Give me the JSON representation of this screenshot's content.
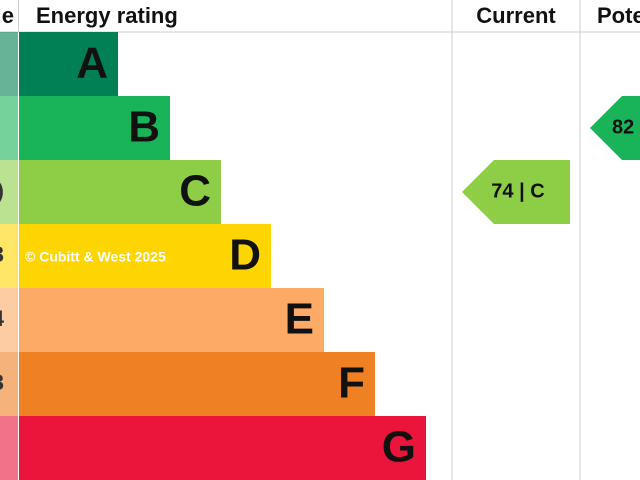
{
  "header": {
    "score": "e",
    "rating": "Energy rating",
    "current": "Current",
    "potential": "Pote"
  },
  "bands": [
    {
      "letter": "A",
      "color": "#008054"
    },
    {
      "letter": "B",
      "color": "#19b459"
    },
    {
      "letter": "C",
      "color": "#8dce46",
      "score": ")"
    },
    {
      "letter": "D",
      "color": "#ffd500",
      "score": "3"
    },
    {
      "letter": "E",
      "color": "#fcaa65",
      "score": "4"
    },
    {
      "letter": "F",
      "color": "#ef8023",
      "score": "3"
    },
    {
      "letter": "G",
      "color": "#e9153b"
    }
  ],
  "current": {
    "label": "74 | C",
    "color": "#8dce46"
  },
  "potential": {
    "label": "82",
    "color": "#19b459"
  },
  "watermark": "© Cubitt & West 2025"
}
